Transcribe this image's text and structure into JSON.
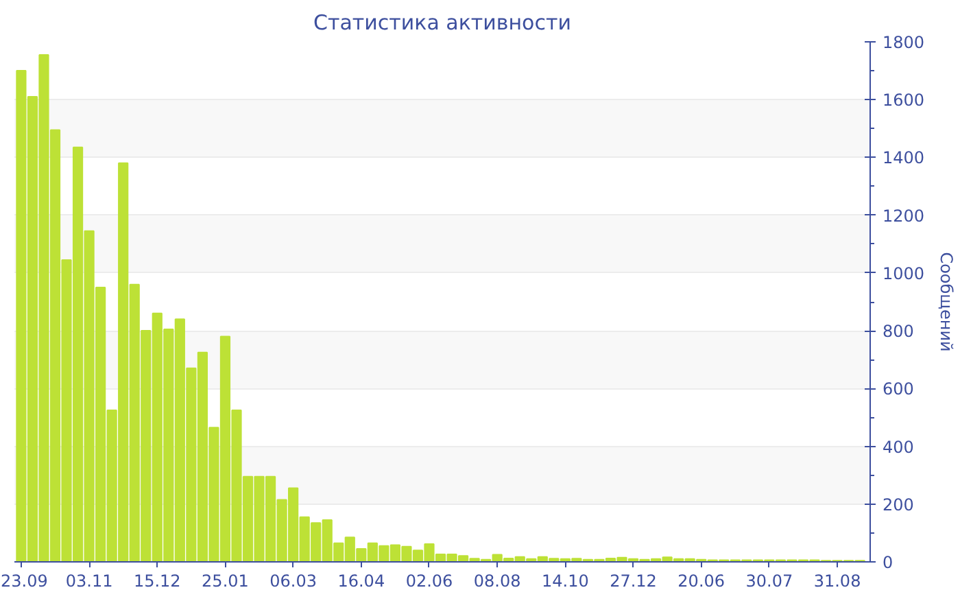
{
  "chart_data": {
    "type": "bar",
    "title": "Статистика активности",
    "ylabel": "Сообщений",
    "categories": [
      "23.09",
      null,
      null,
      null,
      null,
      null,
      "03.11",
      null,
      null,
      null,
      null,
      null,
      "15.12",
      null,
      null,
      null,
      null,
      null,
      "25.01",
      null,
      null,
      null,
      null,
      null,
      "06.03",
      null,
      null,
      null,
      null,
      null,
      "16.04",
      null,
      null,
      null,
      null,
      null,
      "02.06",
      null,
      null,
      null,
      null,
      null,
      "08.08",
      null,
      null,
      null,
      null,
      null,
      "14.10",
      null,
      null,
      null,
      null,
      null,
      "27.12",
      null,
      null,
      null,
      null,
      null,
      "20.06",
      null,
      null,
      null,
      null,
      null,
      "30.07",
      null,
      null,
      null,
      null,
      null,
      "31.08",
      null,
      null
    ],
    "values": [
      1700,
      1610,
      1755,
      1495,
      1045,
      1435,
      1145,
      950,
      525,
      1380,
      960,
      800,
      860,
      805,
      840,
      670,
      725,
      465,
      780,
      525,
      295,
      295,
      295,
      215,
      255,
      155,
      135,
      145,
      65,
      85,
      45,
      65,
      55,
      58,
      53,
      40,
      62,
      26,
      26,
      21,
      11,
      8,
      25,
      12,
      17,
      10,
      17,
      11,
      10,
      11,
      8,
      8,
      12,
      15,
      10,
      8,
      10,
      16,
      10,
      10,
      8,
      6,
      6,
      6,
      6,
      6,
      6,
      6,
      6,
      6,
      6,
      4,
      4,
      4,
      4
    ],
    "color": "#bde136",
    "ylim": [
      0,
      1800
    ],
    "yticks": [
      0,
      200,
      400,
      600,
      800,
      1000,
      1200,
      1400,
      1600,
      1800
    ],
    "grid": "y"
  }
}
